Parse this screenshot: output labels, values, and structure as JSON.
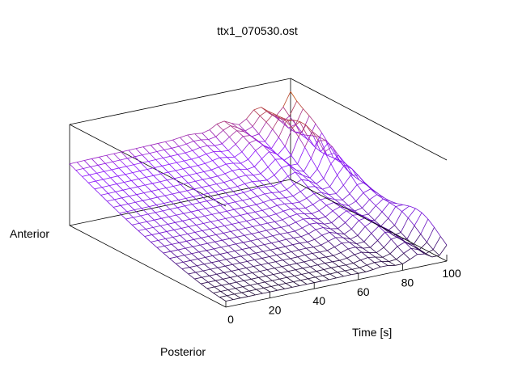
{
  "chart_data": {
    "type": "surface",
    "title": "ttx1_070530.ost",
    "xlabel": "Time [s]",
    "y_axis_end_labels": {
      "front": "Posterior",
      "back": "Anterior"
    },
    "x_ticks": [
      "0",
      "20",
      "40",
      "60",
      "80",
      "100"
    ],
    "xlim": [
      0,
      100
    ],
    "grid_columns": 31,
    "grid_rows": 26,
    "colormap": [
      "#000000",
      "#7010d0",
      "#8a10ff",
      "#c04a10",
      "#e08a00"
    ]
  }
}
